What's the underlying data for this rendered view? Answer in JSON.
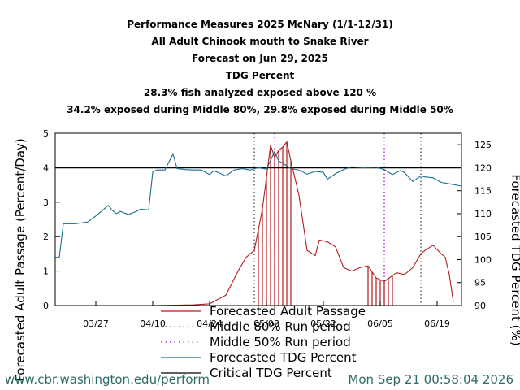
{
  "chart_data": {
    "type": "line",
    "title_lines": [
      "Performance Measures 2025 McNary (1/1-12/31)",
      "All Adult Chinook mouth to Snake River",
      "Forecast on Jun 29, 2025",
      "TDG Percent",
      "28.3% fish analyzed exposed above 120 %",
      "34.2% exposed during Middle 80%, 29.8% exposed during Middle 50%"
    ],
    "ylabel": "Forecasted Adult Passage (Percent/Day)",
    "y2label": "Forecasted TDG Percent (%)",
    "xlim": [
      "03/17",
      "06/25"
    ],
    "ylim": [
      0,
      5
    ],
    "y2lim": [
      90,
      127.5
    ],
    "x_ticks": [
      "03/27",
      "04/10",
      "04/24",
      "05/08",
      "05/22",
      "06/05",
      "06/19"
    ],
    "y_ticks": [
      "0",
      "1",
      "2",
      "3",
      "4",
      "5"
    ],
    "y2_ticks": [
      "90",
      "95",
      "100",
      "105",
      "110",
      "115",
      "120",
      "125"
    ],
    "critical_tdg": 120,
    "middle80_lines": [
      "05/05",
      "06/15"
    ],
    "middle50_lines": [
      "05/10",
      "06/06"
    ],
    "exposure_impulse_days": [
      "05/06",
      "05/07",
      "05/08",
      "05/09",
      "05/10",
      "05/11",
      "05/12",
      "05/13",
      "05/14",
      "06/02",
      "06/03",
      "06/04",
      "06/05",
      "06/06",
      "06/07",
      "06/08"
    ],
    "series": [
      {
        "name": "Forecasted Adult Passage",
        "color": "#b01c1c",
        "x": [
          "03/17",
          "03/27",
          "04/10",
          "04/20",
          "04/24",
          "04/28",
          "05/01",
          "05/03",
          "05/05",
          "05/07",
          "05/09",
          "05/10",
          "05/11",
          "05/12",
          "05/13",
          "05/14",
          "05/16",
          "05/18",
          "05/20",
          "05/21",
          "05/23",
          "05/25",
          "05/27",
          "05/29",
          "05/31",
          "06/02",
          "06/04",
          "06/06",
          "06/09",
          "06/11",
          "06/13",
          "06/15",
          "06/16",
          "06/18",
          "06/20",
          "06/21",
          "06/22",
          "06/23"
        ],
        "values": [
          0,
          0,
          0,
          0.02,
          0.05,
          0.3,
          1.0,
          1.4,
          1.6,
          2.8,
          4.65,
          4.3,
          4.5,
          4.6,
          4.75,
          4.2,
          3.2,
          1.6,
          1.45,
          1.9,
          1.85,
          1.7,
          1.1,
          1.0,
          1.1,
          1.15,
          0.8,
          0.7,
          0.95,
          0.9,
          1.1,
          1.5,
          1.6,
          1.75,
          1.5,
          1.4,
          0.9,
          0.1
        ]
      },
      {
        "name": "Forecasted TDG Percent",
        "color": "#1a6f8e",
        "x": [
          "03/17",
          "03/18",
          "03/19",
          "03/22",
          "03/25",
          "03/27",
          "03/29",
          "03/30",
          "03/31",
          "04/01",
          "04/02",
          "04/04",
          "04/06",
          "04/07",
          "04/09",
          "04/10",
          "04/11",
          "04/13",
          "04/15",
          "04/16",
          "04/18",
          "04/20",
          "04/22",
          "04/24",
          "04/25",
          "04/26",
          "04/28",
          "04/30",
          "05/02",
          "05/04",
          "05/06",
          "05/08",
          "05/10",
          "05/11",
          "05/12",
          "05/14",
          "05/16",
          "05/18",
          "05/20",
          "05/22",
          "05/23",
          "05/25",
          "05/27",
          "05/29",
          "06/01",
          "06/04",
          "06/06",
          "06/08",
          "06/10",
          "06/11",
          "06/13",
          "06/15",
          "06/16",
          "06/18",
          "06/20",
          "06/22",
          "06/25"
        ],
        "values": [
          100.5,
          100.5,
          107.8,
          107.8,
          108.2,
          109.5,
          111,
          111.8,
          110.8,
          110,
          110.5,
          109.8,
          110.5,
          111,
          110.8,
          119,
          119.5,
          119.5,
          123,
          119.8,
          119.6,
          119.5,
          119.5,
          118.5,
          119.3,
          119,
          118.2,
          119.5,
          119.8,
          119.5,
          120,
          119.7,
          123.5,
          121.5,
          121,
          119.8,
          119.5,
          118.6,
          119.2,
          119,
          117.5,
          118.7,
          119.6,
          120.2,
          120,
          120.1,
          119.6,
          118.5,
          119.4,
          118.9,
          117,
          118.2,
          118,
          117.8,
          116.8,
          116.5,
          116
        ]
      }
    ],
    "legend": [
      {
        "label": "Forecasted Adult Passage",
        "style": "solid",
        "color": "#b01c1c"
      },
      {
        "label": "Middle 80% Run period",
        "style": "dotted",
        "color": "#4a4a4a"
      },
      {
        "label": "Middle 50% Run period",
        "style": "dotted",
        "color": "#9b1bd6"
      },
      {
        "label": "Forecasted TDG Percent",
        "style": "solid",
        "color": "#1a6f8e"
      },
      {
        "label": "Critical TDG Percent",
        "style": "solid",
        "color": "#000000"
      }
    ]
  },
  "footer": {
    "left": "www.cbr.washington.edu/perform",
    "right": "Mon Sep 21 00:58:04 2026"
  }
}
